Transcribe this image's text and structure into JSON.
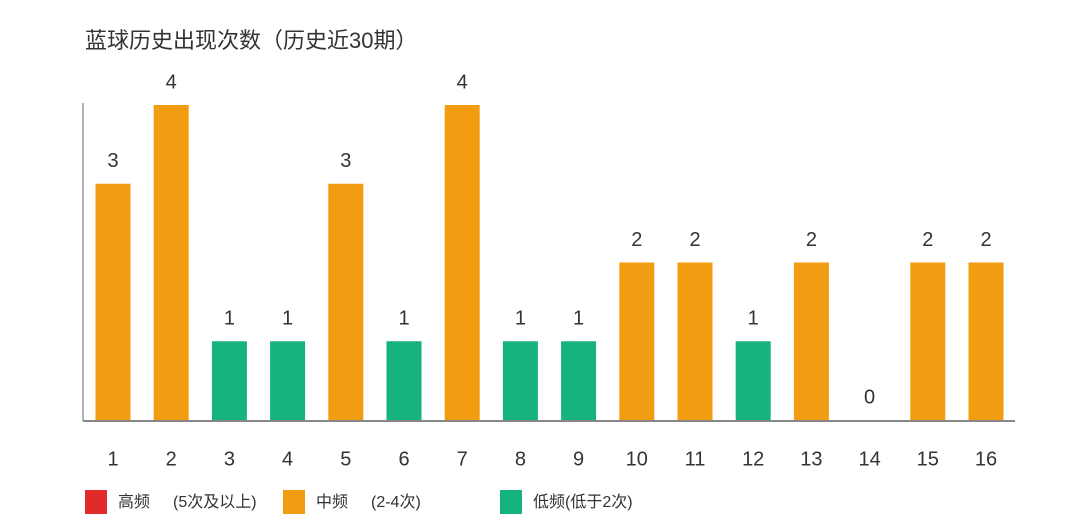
{
  "chart_data": {
    "type": "bar",
    "title": "蓝球历史出现次数（历史近30期）",
    "categories": [
      "1",
      "2",
      "3",
      "4",
      "5",
      "6",
      "7",
      "8",
      "9",
      "10",
      "11",
      "12",
      "13",
      "14",
      "15",
      "16"
    ],
    "values": [
      3,
      4,
      1,
      1,
      3,
      1,
      4,
      1,
      1,
      2,
      2,
      1,
      2,
      0,
      2,
      2
    ],
    "colors": [
      "#f29c11",
      "#f29c11",
      "#16b27f",
      "#16b27f",
      "#f29c11",
      "#16b27f",
      "#f29c11",
      "#16b27f",
      "#16b27f",
      "#f29c11",
      "#f29c11",
      "#16b27f",
      "#f29c11",
      "#16b27f",
      "#f29c11",
      "#f29c11"
    ],
    "ylim": [
      0,
      4
    ],
    "legend": [
      {
        "name": "高频",
        "note": "(5次及以上)",
        "color": "#e02b2b"
      },
      {
        "name": "中频",
        "note": "(2-4次)",
        "color": "#f29c11"
      },
      {
        "name": "低频",
        "note": "(低于2次)",
        "color": "#16b27f"
      }
    ]
  }
}
